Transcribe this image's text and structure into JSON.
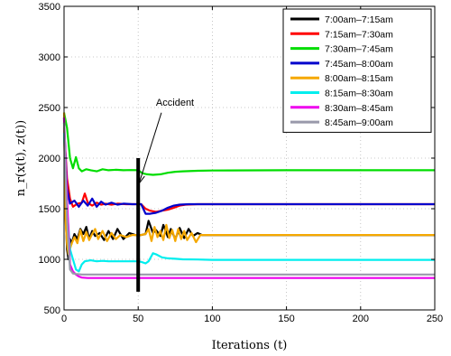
{
  "chart_data": {
    "type": "line",
    "xlabel": "Iterations (t)",
    "ylabel": "n_r(x(t), z(t))",
    "xlim": [
      0,
      250
    ],
    "ylim": [
      500,
      3500
    ],
    "xticks": [
      0,
      50,
      100,
      150,
      200,
      250
    ],
    "yticks": [
      500,
      1000,
      1500,
      2000,
      2500,
      3000,
      3500
    ],
    "grid": true,
    "legend_position": "top-right",
    "annotation": {
      "text": "Accident",
      "x": 50,
      "text_x": 62,
      "text_y": 2520,
      "arrow_to_y": 1750,
      "bar_from": 680,
      "bar_to": 2000
    },
    "series": [
      {
        "name": "7:00am–7:15am",
        "color": "#000000",
        "points": [
          [
            0,
            2400
          ],
          [
            1,
            1500
          ],
          [
            2,
            1100
          ],
          [
            3,
            1000
          ],
          [
            4,
            1200
          ],
          [
            5,
            1150
          ],
          [
            7,
            1250
          ],
          [
            9,
            1200
          ],
          [
            11,
            1300
          ],
          [
            13,
            1250
          ],
          [
            15,
            1320
          ],
          [
            17,
            1200
          ],
          [
            19,
            1280
          ],
          [
            21,
            1230
          ],
          [
            24,
            1260
          ],
          [
            27,
            1190
          ],
          [
            30,
            1280
          ],
          [
            33,
            1200
          ],
          [
            36,
            1300
          ],
          [
            40,
            1200
          ],
          [
            44,
            1260
          ],
          [
            48,
            1240
          ],
          [
            52,
            1240
          ],
          [
            55,
            1250
          ],
          [
            57,
            1380
          ],
          [
            60,
            1260
          ],
          [
            62,
            1290
          ],
          [
            65,
            1230
          ],
          [
            67,
            1340
          ],
          [
            70,
            1220
          ],
          [
            72,
            1300
          ],
          [
            75,
            1200
          ],
          [
            78,
            1310
          ],
          [
            81,
            1210
          ],
          [
            84,
            1300
          ],
          [
            87,
            1230
          ],
          [
            90,
            1260
          ],
          [
            93,
            1240
          ],
          [
            100,
            1240
          ],
          [
            150,
            1240
          ],
          [
            250,
            1240
          ]
        ]
      },
      {
        "name": "7:15am–7:30am",
        "color": "#ff0000",
        "points": [
          [
            0,
            2300
          ],
          [
            2,
            1800
          ],
          [
            4,
            1600
          ],
          [
            6,
            1520
          ],
          [
            9,
            1550
          ],
          [
            12,
            1560
          ],
          [
            14,
            1650
          ],
          [
            16,
            1560
          ],
          [
            19,
            1530
          ],
          [
            22,
            1560
          ],
          [
            25,
            1540
          ],
          [
            28,
            1550
          ],
          [
            32,
            1540
          ],
          [
            36,
            1550
          ],
          [
            42,
            1545
          ],
          [
            48,
            1545
          ],
          [
            52,
            1545
          ],
          [
            55,
            1500
          ],
          [
            58,
            1480
          ],
          [
            62,
            1470
          ],
          [
            66,
            1480
          ],
          [
            70,
            1490
          ],
          [
            74,
            1510
          ],
          [
            78,
            1530
          ],
          [
            82,
            1540
          ],
          [
            90,
            1545
          ],
          [
            100,
            1545
          ],
          [
            250,
            1545
          ]
        ]
      },
      {
        "name": "7:30am–7:45am",
        "color": "#00dd00",
        "points": [
          [
            0,
            2450
          ],
          [
            2,
            2300
          ],
          [
            4,
            2000
          ],
          [
            6,
            1900
          ],
          [
            8,
            2010
          ],
          [
            10,
            1900
          ],
          [
            12,
            1870
          ],
          [
            15,
            1890
          ],
          [
            18,
            1880
          ],
          [
            22,
            1870
          ],
          [
            26,
            1890
          ],
          [
            30,
            1880
          ],
          [
            35,
            1885
          ],
          [
            40,
            1880
          ],
          [
            45,
            1882
          ],
          [
            50,
            1880
          ],
          [
            53,
            1850
          ],
          [
            56,
            1840
          ],
          [
            60,
            1835
          ],
          [
            65,
            1840
          ],
          [
            70,
            1855
          ],
          [
            75,
            1865
          ],
          [
            80,
            1870
          ],
          [
            90,
            1875
          ],
          [
            100,
            1878
          ],
          [
            150,
            1880
          ],
          [
            250,
            1880
          ]
        ]
      },
      {
        "name": "7:45am–8:00am",
        "color": "#0000cc",
        "points": [
          [
            0,
            2350
          ],
          [
            2,
            1700
          ],
          [
            4,
            1550
          ],
          [
            7,
            1580
          ],
          [
            10,
            1520
          ],
          [
            13,
            1580
          ],
          [
            16,
            1530
          ],
          [
            19,
            1600
          ],
          [
            22,
            1520
          ],
          [
            25,
            1570
          ],
          [
            28,
            1540
          ],
          [
            32,
            1560
          ],
          [
            36,
            1540
          ],
          [
            40,
            1550
          ],
          [
            46,
            1545
          ],
          [
            52,
            1545
          ],
          [
            55,
            1450
          ],
          [
            58,
            1450
          ],
          [
            62,
            1460
          ],
          [
            66,
            1480
          ],
          [
            70,
            1510
          ],
          [
            74,
            1530
          ],
          [
            78,
            1540
          ],
          [
            84,
            1545
          ],
          [
            100,
            1545
          ],
          [
            250,
            1545
          ]
        ]
      },
      {
        "name": "8:00am–8:15am",
        "color": "#f5a800",
        "points": [
          [
            0,
            2450
          ],
          [
            1,
            1400
          ],
          [
            2,
            1150
          ],
          [
            3,
            1050
          ],
          [
            5,
            1150
          ],
          [
            7,
            1220
          ],
          [
            9,
            1160
          ],
          [
            11,
            1290
          ],
          [
            13,
            1180
          ],
          [
            15,
            1270
          ],
          [
            17,
            1190
          ],
          [
            19,
            1250
          ],
          [
            21,
            1300
          ],
          [
            23,
            1200
          ],
          [
            26,
            1280
          ],
          [
            29,
            1180
          ],
          [
            32,
            1260
          ],
          [
            35,
            1200
          ],
          [
            38,
            1240
          ],
          [
            42,
            1220
          ],
          [
            46,
            1240
          ],
          [
            52,
            1240
          ],
          [
            55,
            1250
          ],
          [
            57,
            1300
          ],
          [
            59,
            1180
          ],
          [
            61,
            1320
          ],
          [
            63,
            1220
          ],
          [
            65,
            1280
          ],
          [
            67,
            1190
          ],
          [
            69,
            1340
          ],
          [
            71,
            1210
          ],
          [
            73,
            1290
          ],
          [
            75,
            1180
          ],
          [
            77,
            1300
          ],
          [
            79,
            1200
          ],
          [
            81,
            1280
          ],
          [
            83,
            1190
          ],
          [
            86,
            1260
          ],
          [
            89,
            1170
          ],
          [
            92,
            1240
          ],
          [
            95,
            1240
          ],
          [
            100,
            1240
          ],
          [
            250,
            1240
          ]
        ]
      },
      {
        "name": "8:15am–8:30am",
        "color": "#00eeee",
        "points": [
          [
            0,
            2250
          ],
          [
            2,
            1500
          ],
          [
            4,
            1100
          ],
          [
            6,
            1000
          ],
          [
            8,
            900
          ],
          [
            10,
            880
          ],
          [
            12,
            950
          ],
          [
            14,
            980
          ],
          [
            18,
            990
          ],
          [
            22,
            980
          ],
          [
            26,
            985
          ],
          [
            30,
            980
          ],
          [
            40,
            980
          ],
          [
            50,
            980
          ],
          [
            52,
            975
          ],
          [
            55,
            960
          ],
          [
            57,
            980
          ],
          [
            60,
            1060
          ],
          [
            62,
            1050
          ],
          [
            66,
            1020
          ],
          [
            70,
            1010
          ],
          [
            75,
            1005
          ],
          [
            80,
            1000
          ],
          [
            90,
            998
          ],
          [
            100,
            995
          ],
          [
            250,
            995
          ]
        ]
      },
      {
        "name": "8:30am–8:45am",
        "color": "#ee00ee",
        "points": [
          [
            0,
            2400
          ],
          [
            2,
            1600
          ],
          [
            4,
            950
          ],
          [
            6,
            880
          ],
          [
            8,
            850
          ],
          [
            10,
            830
          ],
          [
            12,
            820
          ],
          [
            16,
            815
          ],
          [
            20,
            815
          ],
          [
            30,
            815
          ],
          [
            50,
            815
          ],
          [
            100,
            815
          ],
          [
            250,
            815
          ]
        ]
      },
      {
        "name": "8:45am–9:00am",
        "color": "#9999aa",
        "points": [
          [
            0,
            2350
          ],
          [
            2,
            1400
          ],
          [
            4,
            900
          ],
          [
            6,
            860
          ],
          [
            8,
            855
          ],
          [
            12,
            850
          ],
          [
            20,
            850
          ],
          [
            50,
            850
          ],
          [
            100,
            850
          ],
          [
            250,
            850
          ]
        ]
      }
    ]
  }
}
